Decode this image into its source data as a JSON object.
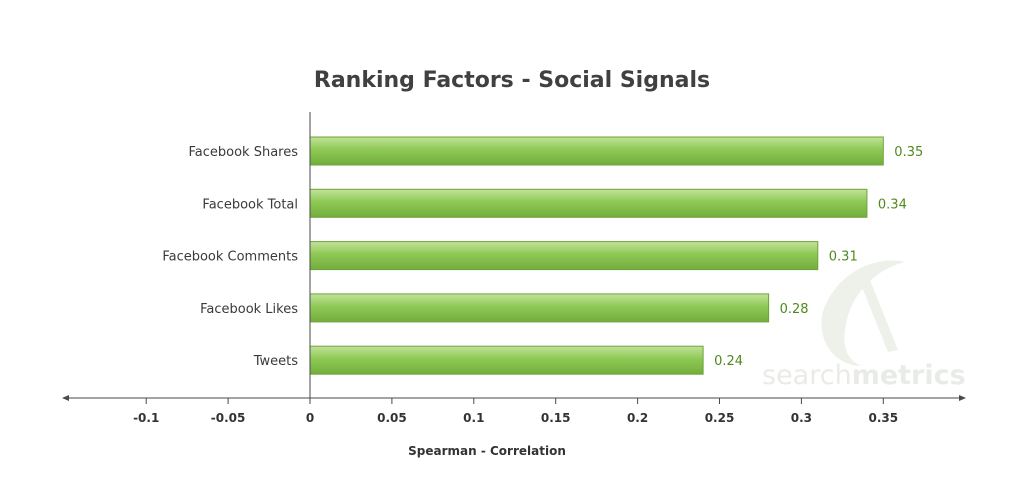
{
  "chart_data": {
    "type": "bar",
    "orientation": "horizontal",
    "title": "Ranking Factors - Social Signals",
    "xlabel": "Spearman - Correlation",
    "ylabel": "",
    "categories": [
      "Facebook Shares",
      "Facebook Total",
      "Facebook Comments",
      "Facebook Likes",
      "Tweets"
    ],
    "values": [
      0.35,
      0.34,
      0.31,
      0.28,
      0.24
    ],
    "value_labels": [
      "0.35",
      "0.34",
      "0.31",
      "0.28",
      "0.24"
    ],
    "xlim": [
      -0.15,
      0.4
    ],
    "xticks": [
      -0.1,
      -0.05,
      0,
      0.05,
      0.1,
      0.15,
      0.2,
      0.25,
      0.3,
      0.35
    ],
    "xtick_labels": [
      "-0.1",
      "-0.05",
      "0",
      "0.05",
      "0.1",
      "0.15",
      "0.2",
      "0.25",
      "0.3",
      "0.35"
    ],
    "grid": false,
    "legend": "none",
    "bar_color": "#8cc152",
    "bar_border_color": "#6fa33a",
    "value_label_color": "#4f8a1e"
  },
  "watermark": {
    "text_light": "search",
    "text_bold": "metrics"
  }
}
